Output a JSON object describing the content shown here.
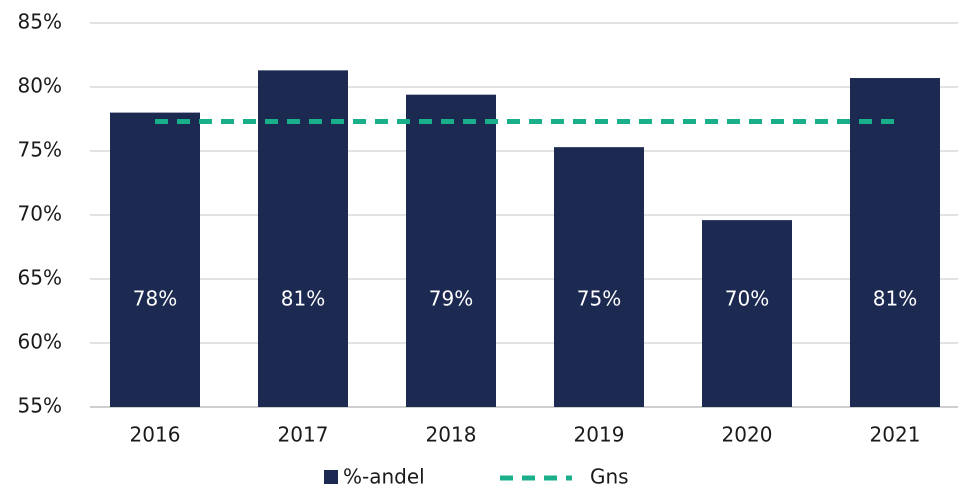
{
  "chart_data": {
    "type": "bar",
    "categories": [
      "2016",
      "2017",
      "2018",
      "2019",
      "2020",
      "2021"
    ],
    "series": [
      {
        "name": "%-andel",
        "type": "bar",
        "color": "#1c2951",
        "values": [
          78.0,
          81.3,
          79.4,
          75.3,
          69.6,
          80.7
        ],
        "value_labels": [
          "78%",
          "81%",
          "79%",
          "75%",
          "70%",
          "81%"
        ]
      },
      {
        "name": "Gns",
        "type": "line",
        "color": "#1aaf8b",
        "dashed": true,
        "values": [
          77.3,
          77.3,
          77.3,
          77.3,
          77.3,
          77.3
        ]
      }
    ],
    "ylim": [
      55,
      85
    ],
    "yticks": [
      {
        "value": 55,
        "label": "55%"
      },
      {
        "value": 60,
        "label": "60%"
      },
      {
        "value": 65,
        "label": "65%"
      },
      {
        "value": 70,
        "label": "70%"
      },
      {
        "value": 75,
        "label": "75%"
      },
      {
        "value": 80,
        "label": "80%"
      },
      {
        "value": 85,
        "label": "85%"
      }
    ],
    "grid": true,
    "legend": "bottom"
  }
}
